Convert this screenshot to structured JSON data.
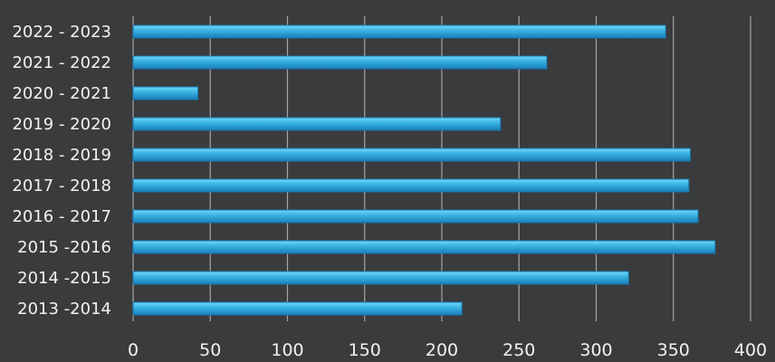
{
  "chart_data": {
    "type": "bar",
    "orientation": "horizontal",
    "categories": [
      "2022 - 2023",
      "2021 - 2022",
      "2020 - 2021",
      "2019 - 2020",
      "2018 - 2019",
      "2017 - 2018",
      "2016 - 2017",
      "2015 -2016",
      "2014 -2015",
      "2013 -2014"
    ],
    "values": [
      345,
      268,
      42,
      238,
      361,
      360,
      366,
      377,
      321,
      213
    ],
    "xlim": [
      0,
      400
    ],
    "xticks": [
      "0",
      "50",
      "100",
      "150",
      "200",
      "250",
      "300",
      "350",
      "400"
    ],
    "grid": true,
    "legend": "none",
    "title": "",
    "xlabel": "",
    "ylabel": ""
  },
  "colors": {
    "background": "#3a3b3d",
    "bar_fill": "#2ea3d6",
    "bar_highlight": "#5fd0f5",
    "bar_edge": "#1877b0",
    "grid": "#c9c9c9",
    "text": "#f2f2f2"
  }
}
